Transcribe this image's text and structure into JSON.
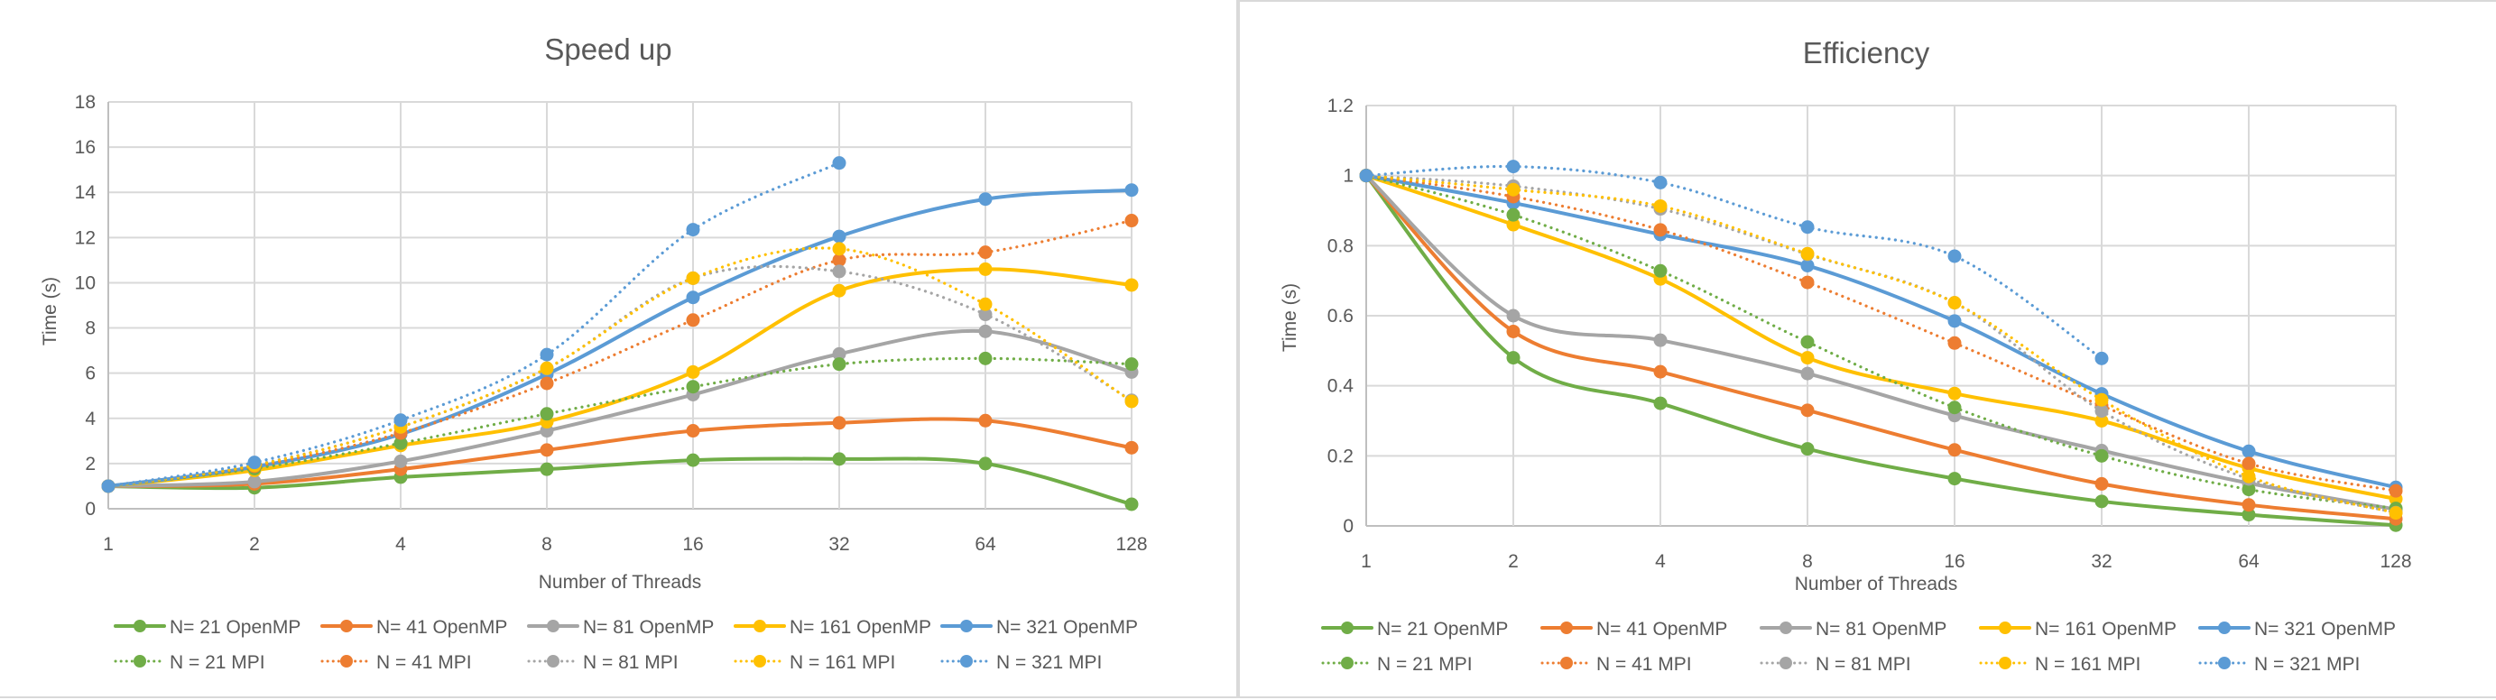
{
  "chart_data": [
    {
      "type": "line",
      "title": "Speed up",
      "xlabel": "Number of  Threads",
      "ylabel": "Time (s)",
      "categories": [
        "1",
        "2",
        "4",
        "8",
        "16",
        "32",
        "64",
        "128"
      ],
      "ylim": [
        0,
        18
      ],
      "yticks": [
        0,
        2,
        4,
        6,
        8,
        10,
        12,
        14,
        16,
        18
      ],
      "grid": true,
      "legend_position": "bottom",
      "series": [
        {
          "name": "N= 21 OpenMP",
          "color": "#70ad47",
          "style": "solid",
          "values": [
            1,
            0.93,
            1.4,
            1.75,
            2.15,
            2.2,
            2.0,
            0.2
          ]
        },
        {
          "name": "N= 41 OpenMP",
          "color": "#ed7d31",
          "style": "solid",
          "values": [
            1,
            1.1,
            1.75,
            2.6,
            3.45,
            3.8,
            3.9,
            2.7
          ]
        },
        {
          "name": "N= 81 OpenMP",
          "color": "#a5a5a5",
          "style": "solid",
          "values": [
            1,
            1.2,
            2.1,
            3.45,
            5.05,
            6.85,
            7.85,
            6.05
          ]
        },
        {
          "name": "N= 161 OpenMP",
          "color": "#ffc000",
          "style": "solid",
          "values": [
            1,
            1.7,
            2.8,
            3.85,
            6.05,
            9.65,
            10.6,
            9.9
          ]
        },
        {
          "name": "N= 321 OpenMP",
          "color": "#5b9bd5",
          "style": "solid",
          "values": [
            1,
            1.85,
            3.3,
            5.95,
            9.35,
            12.05,
            13.7,
            14.1
          ]
        },
        {
          "name": "N = 21 MPI",
          "color": "#70ad47",
          "style": "dotted",
          "values": [
            1,
            1.78,
            2.9,
            4.2,
            5.4,
            6.4,
            6.65,
            6.4
          ]
        },
        {
          "name": "N = 41 MPI",
          "color": "#ed7d31",
          "style": "dotted",
          "values": [
            1,
            1.88,
            3.35,
            5.55,
            8.35,
            11.0,
            11.35,
            12.75
          ]
        },
        {
          "name": "N = 81 MPI",
          "color": "#a5a5a5",
          "style": "dotted",
          "values": [
            1,
            1.94,
            3.62,
            6.2,
            10.2,
            10.5,
            8.6,
            4.8
          ]
        },
        {
          "name": "N = 161 MPI",
          "color": "#ffc000",
          "style": "dotted",
          "values": [
            1,
            1.92,
            3.62,
            6.22,
            10.2,
            11.5,
            9.05,
            4.75
          ]
        },
        {
          "name": "N = 321 MPI",
          "color": "#5b9bd5",
          "style": "dotted",
          "values": [
            1,
            2.05,
            3.92,
            6.82,
            12.35,
            15.3,
            null,
            null
          ]
        }
      ]
    },
    {
      "type": "line",
      "title": "Efficiency",
      "xlabel": "Number of  Threads",
      "ylabel": "Time (s)",
      "categories": [
        "1",
        "2",
        "4",
        "8",
        "16",
        "32",
        "64",
        "128"
      ],
      "ylim": [
        0,
        1.2
      ],
      "yticks": [
        0,
        0.2,
        0.4,
        0.6,
        0.8,
        1,
        1.2
      ],
      "grid": true,
      "legend_position": "bottom",
      "series": [
        {
          "name": "N= 21 OpenMP",
          "color": "#70ad47",
          "style": "solid",
          "values": [
            1,
            0.48,
            0.35,
            0.22,
            0.135,
            0.07,
            0.032,
            0.002
          ]
        },
        {
          "name": "N= 41 OpenMP",
          "color": "#ed7d31",
          "style": "solid",
          "values": [
            1,
            0.555,
            0.44,
            0.33,
            0.217,
            0.12,
            0.06,
            0.02
          ]
        },
        {
          "name": "N= 81 OpenMP",
          "color": "#a5a5a5",
          "style": "solid",
          "values": [
            1,
            0.6,
            0.53,
            0.435,
            0.315,
            0.215,
            0.122,
            0.047
          ]
        },
        {
          "name": "N= 161 OpenMP",
          "color": "#ffc000",
          "style": "solid",
          "values": [
            1,
            0.86,
            0.705,
            0.48,
            0.378,
            0.3,
            0.165,
            0.077
          ]
        },
        {
          "name": "N= 321 OpenMP",
          "color": "#5b9bd5",
          "style": "solid",
          "values": [
            1,
            0.922,
            0.832,
            0.743,
            0.585,
            0.377,
            0.213,
            0.11
          ]
        },
        {
          "name": "N = 21 MPI",
          "color": "#70ad47",
          "style": "dotted",
          "values": [
            1,
            0.888,
            0.728,
            0.525,
            0.338,
            0.2,
            0.104,
            0.05
          ]
        },
        {
          "name": "N = 41 MPI",
          "color": "#ed7d31",
          "style": "dotted",
          "values": [
            1,
            0.94,
            0.845,
            0.695,
            0.522,
            0.343,
            0.178,
            0.1
          ]
        },
        {
          "name": "N = 81 MPI",
          "color": "#a5a5a5",
          "style": "dotted",
          "values": [
            1,
            0.97,
            0.905,
            0.775,
            0.637,
            0.328,
            0.134,
            0.038
          ]
        },
        {
          "name": "N = 161 MPI",
          "color": "#ffc000",
          "style": "dotted",
          "values": [
            1,
            0.96,
            0.913,
            0.777,
            0.637,
            0.36,
            0.141,
            0.037
          ]
        },
        {
          "name": "N = 321 MPI",
          "color": "#5b9bd5",
          "style": "dotted",
          "values": [
            1,
            1.026,
            0.98,
            0.853,
            0.77,
            0.478,
            null,
            null
          ]
        }
      ]
    }
  ]
}
